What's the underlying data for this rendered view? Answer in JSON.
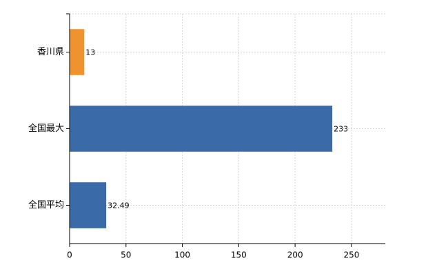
{
  "chart_data": {
    "type": "bar",
    "orientation": "horizontal",
    "categories": [
      "香川県",
      "全国最大",
      "全国平均"
    ],
    "values": [
      13,
      233,
      32.49
    ],
    "colors": [
      "#f0922e",
      "#3a6aa8",
      "#3a6aa8"
    ],
    "xlim": [
      0,
      280
    ],
    "xticks": [
      0,
      50,
      100,
      150,
      200,
      250
    ],
    "grid": true
  }
}
